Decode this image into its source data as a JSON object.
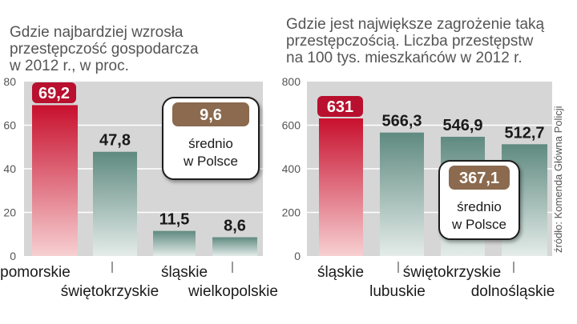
{
  "charts": [
    {
      "title_lines": [
        "Gdzie najbardziej wzrosła",
        "przestępczość gospodarcza",
        "w 2012 r., w proc."
      ],
      "chart_data": {
        "type": "bar",
        "categories": [
          "pomorskie",
          "świętokrzyskie",
          "śląskie",
          "wielkopolskie"
        ],
        "values": [
          69.2,
          47.8,
          11.5,
          8.6
        ],
        "value_labels": [
          "69,2",
          "47,8",
          "11,5",
          "8,6"
        ],
        "ylim": [
          0,
          80
        ],
        "yticks": [
          0,
          20,
          40,
          60,
          80
        ],
        "highlight_index": 0,
        "grid": true,
        "annotation": {
          "value": "9,6",
          "line1": "średnio",
          "line2": "w Polsce"
        }
      }
    },
    {
      "title_lines": [
        "Gdzie jest największe zagrożenie taką",
        "przestępczością. Liczba przestępstw",
        "na 100 tys. mieszkańców w 2012 r."
      ],
      "chart_data": {
        "type": "bar",
        "categories": [
          "śląskie",
          "lubuskie",
          "świętokrzyskie",
          "dolnośląskie"
        ],
        "values": [
          631,
          566.3,
          546.9,
          512.7
        ],
        "value_labels": [
          "631",
          "566,3",
          "546,9",
          "512,7"
        ],
        "ylim": [
          0,
          800
        ],
        "yticks": [
          0,
          200,
          400,
          600,
          800
        ],
        "highlight_index": 0,
        "grid": true,
        "annotation": {
          "value": "367,1",
          "line1": "średnio",
          "line2": "w Polsce"
        }
      }
    }
  ],
  "source": "źródło: Komenda Główna Policji",
  "colors": {
    "highlight_top": "#c8102e",
    "highlight_bottom": "#f7d0d2",
    "bar_top": "#5f8a80",
    "bar_bottom": "#e4ece9",
    "plot_bg": "#d6d6d6",
    "grid": "#ffffff",
    "badge_red": "#b8102e",
    "badge_brown": "#8b6a4f",
    "text": "#1a1a1a",
    "axis_text": "#555555"
  }
}
